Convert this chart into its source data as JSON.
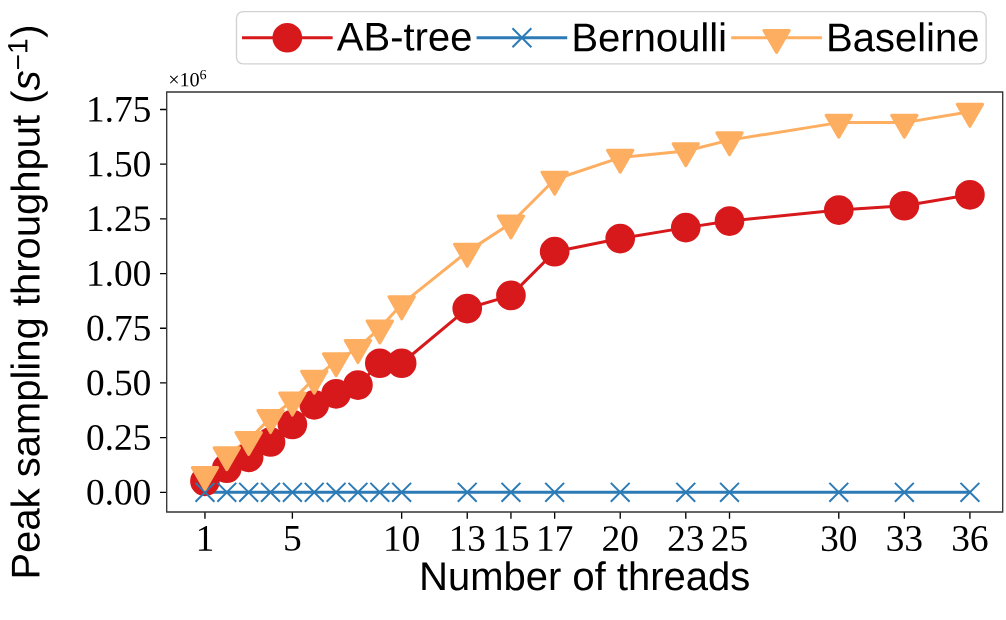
{
  "chart_data": {
    "type": "line",
    "xlabel": "Number of threads",
    "ylabel": "Peak sampling throughput (*s*$^{−1}$)",
    "annotations": [
      "×10$^{6}$"
    ],
    "x": [
      1,
      2,
      3,
      4,
      5,
      6,
      7,
      8,
      9,
      10,
      13,
      15,
      17,
      20,
      23,
      25,
      30,
      33,
      36
    ],
    "series": [
      {
        "name": "AB-tree",
        "color": "#d7191c",
        "marker": "circle",
        "values": [
          0.05,
          0.11,
          0.16,
          0.23,
          0.31,
          0.4,
          0.45,
          0.49,
          0.59,
          0.59,
          0.84,
          0.9,
          1.1,
          1.16,
          1.21,
          1.24,
          1.29,
          1.31,
          1.36
        ]
      },
      {
        "name": "Bernoulli",
        "color": "#2c7bb6",
        "marker": "cross",
        "values": [
          0,
          0,
          0,
          0,
          0,
          0,
          0,
          0,
          0,
          0,
          0,
          0,
          0,
          0,
          0,
          0,
          0,
          0,
          0
        ]
      },
      {
        "name": "Baseline",
        "color": "#fdae61",
        "marker": "triangle",
        "values": [
          0.08,
          0.17,
          0.24,
          0.34,
          0.42,
          0.52,
          0.6,
          0.66,
          0.75,
          0.86,
          1.1,
          1.23,
          1.43,
          1.53,
          1.56,
          1.61,
          1.69,
          1.69,
          1.74
        ]
      }
    ],
    "xlim": [
      -0.75,
      37.5
    ],
    "xticks": [
      1,
      5,
      10,
      13,
      15,
      17,
      20,
      23,
      25,
      30,
      33,
      36
    ],
    "ylim": [
      -0.09,
      1.83
    ],
    "yticks": [
      {
        "value": 0,
        "label": "0.00"
      },
      {
        "value": 0.25,
        "label": "0.25"
      },
      {
        "value": 0.5,
        "label": "0.50"
      },
      {
        "value": 0.75,
        "label": "0.75"
      },
      {
        "value": 1,
        "label": "1.00"
      },
      {
        "value": 1.25,
        "label": "1.25"
      },
      {
        "value": 1.5,
        "label": "1.50"
      },
      {
        "value": 1.75,
        "label": "1.75"
      }
    ],
    "legend": "top right",
    "line_style": "solid"
  }
}
